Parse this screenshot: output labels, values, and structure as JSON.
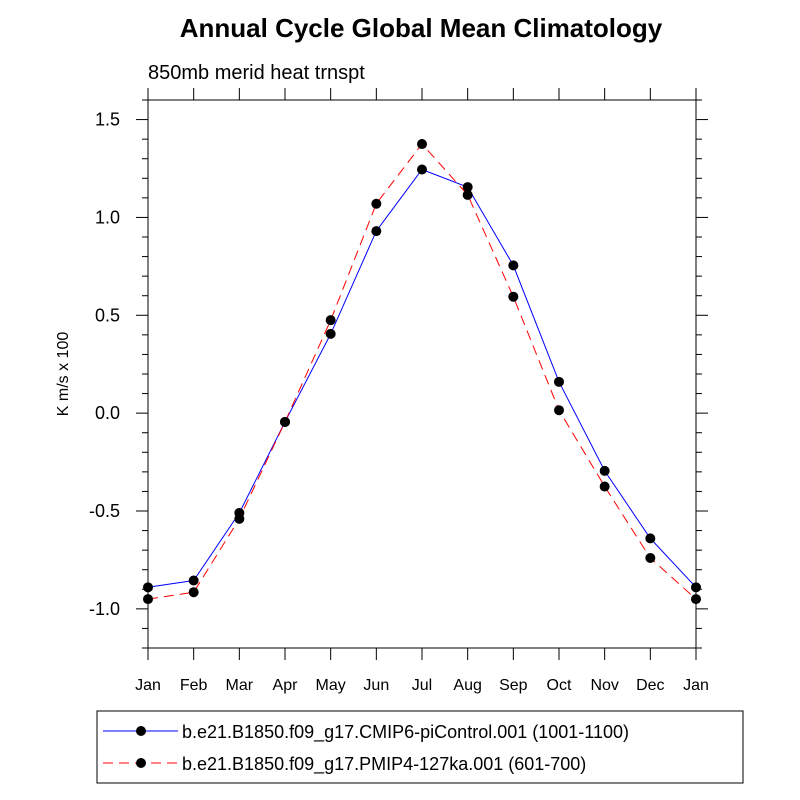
{
  "chart_data": {
    "type": "line",
    "title": "Annual Cycle Global Mean Climatology",
    "subtitle": "850mb merid heat trnspt",
    "xlabel": "",
    "ylabel": "K m/s x 100",
    "categories": [
      "Jan",
      "Feb",
      "Mar",
      "Apr",
      "May",
      "Jun",
      "Jul",
      "Aug",
      "Sep",
      "Oct",
      "Nov",
      "Dec",
      "Jan"
    ],
    "ylim": [
      -1.2,
      1.6
    ],
    "yticks": [
      -1.0,
      -0.5,
      0.0,
      0.5,
      1.0,
      1.5
    ],
    "ytick_labels": [
      "-1.0",
      "-0.5",
      "0.0",
      "0.5",
      "1.0",
      "1.5"
    ],
    "grid": false,
    "legend_position": "bottom",
    "series": [
      {
        "name": "b.e21.B1850.f09_g17.CMIP6-piControl.001 (1001-1100)",
        "color": "#0000ff",
        "dash": "solid",
        "values": [
          -0.89,
          -0.855,
          -0.51,
          -0.045,
          0.405,
          0.93,
          1.245,
          1.155,
          0.755,
          0.16,
          -0.295,
          -0.64,
          -0.89
        ]
      },
      {
        "name": "b.e21.B1850.f09_g17.PMIP4-127ka.001 (601-700)",
        "color": "#ff0000",
        "dash": "dashed",
        "values": [
          -0.95,
          -0.915,
          -0.54,
          -0.045,
          0.475,
          1.07,
          1.375,
          1.115,
          0.595,
          0.015,
          -0.375,
          -0.74,
          -0.95
        ]
      }
    ]
  }
}
